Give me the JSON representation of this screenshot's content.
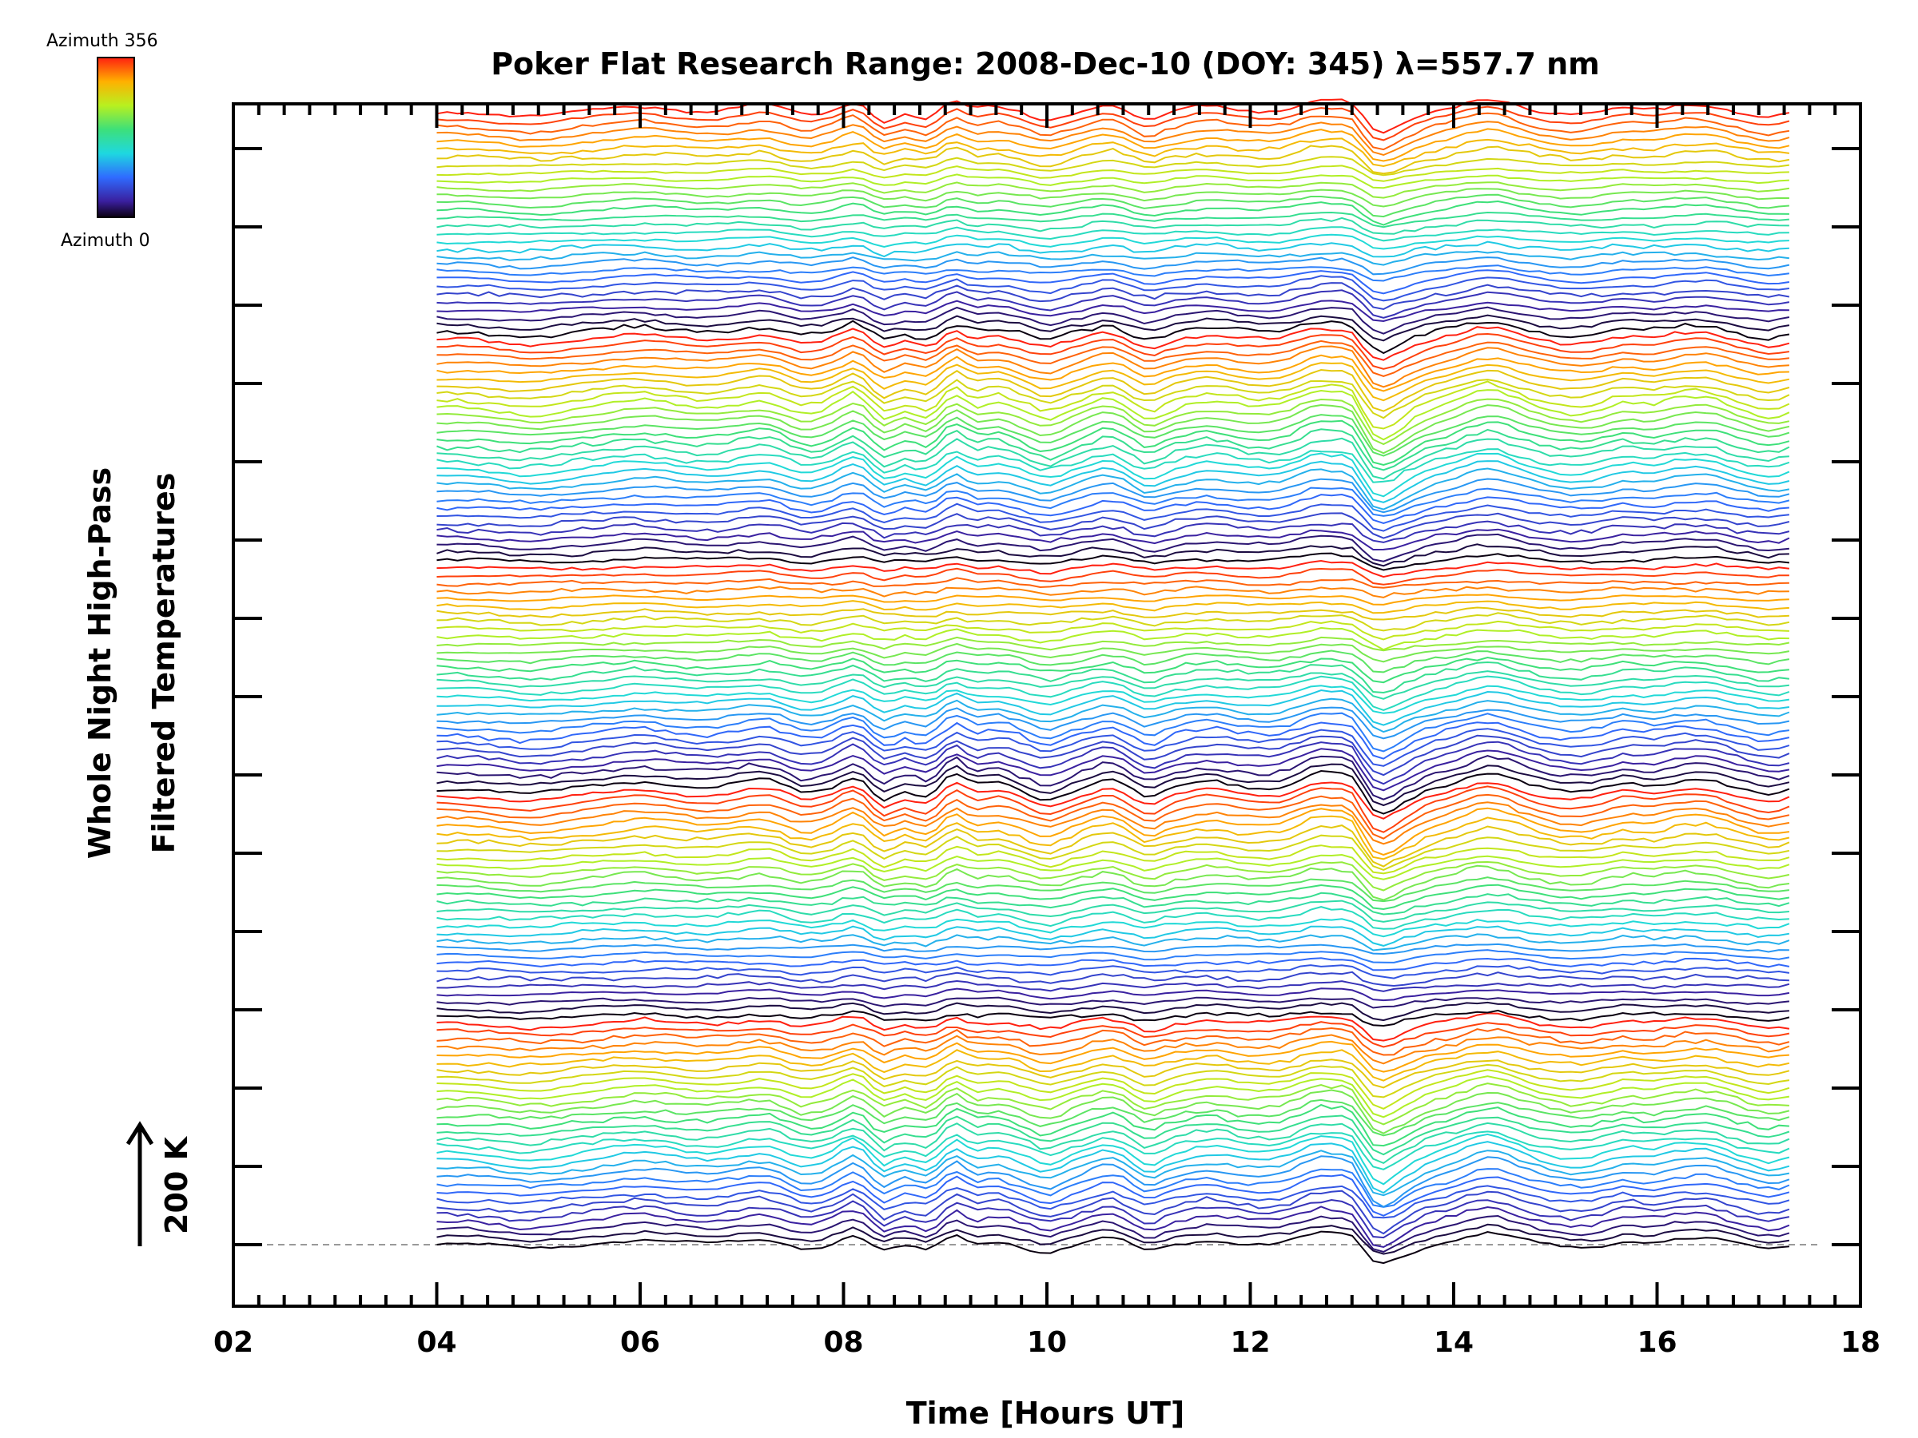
{
  "chart_data": {
    "type": "line",
    "title": "Poker Flat Research Range: 2008-Dec-10 (DOY: 345) λ=557.7 nm",
    "xlabel": "Time [Hours UT]",
    "ylabel_line1": "Whole Night High-Pass",
    "ylabel_line2": "Filtered Temperatures",
    "xlim": [
      2,
      18
    ],
    "x_ticks": [
      "02",
      "04",
      "06",
      "08",
      "10",
      "12",
      "14",
      "16",
      "18"
    ],
    "x_start": 4.0,
    "x_end": 17.3,
    "num_traces": 150,
    "scale_bar_label": "200 K",
    "colorbar": {
      "label_top": "Azimuth 356",
      "label_bottom": "Azimuth 0",
      "min": 0,
      "max": 356
    },
    "series_note": "",
    "grid": false
  },
  "colors": {
    "frame": "#000000",
    "baseline": "#999999"
  }
}
